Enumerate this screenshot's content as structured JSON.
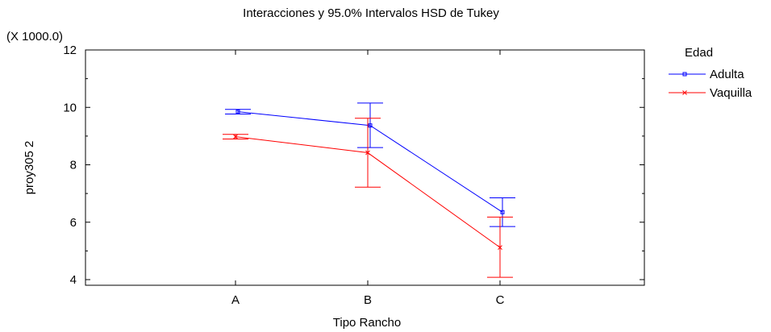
{
  "chart_data": {
    "type": "line",
    "title": "Interacciones y 95.0% Intervalos HSD de Tukey",
    "xlabel": "Tipo Rancho",
    "ylabel": "proy305 2",
    "y_multiplier": "(X 1000.0)",
    "categories": [
      "A",
      "B",
      "C"
    ],
    "ylim": [
      4,
      12
    ],
    "y_ticks": [
      "4",
      "6",
      "8",
      "10",
      "12"
    ],
    "grid": false,
    "legend": {
      "title": "Edad",
      "position": "top-right"
    },
    "series": [
      {
        "name": "Adulta",
        "color": "#0000ff",
        "marker": "square",
        "values": [
          9.85,
          9.37,
          6.35
        ],
        "lower": [
          9.77,
          8.6,
          5.85
        ],
        "upper": [
          9.93,
          10.15,
          6.85
        ]
      },
      {
        "name": "Vaquilla",
        "color": "#ff0000",
        "marker": "x",
        "values": [
          8.98,
          8.42,
          5.12
        ],
        "lower": [
          8.9,
          7.22,
          4.08
        ],
        "upper": [
          9.06,
          9.62,
          6.18
        ]
      }
    ]
  }
}
